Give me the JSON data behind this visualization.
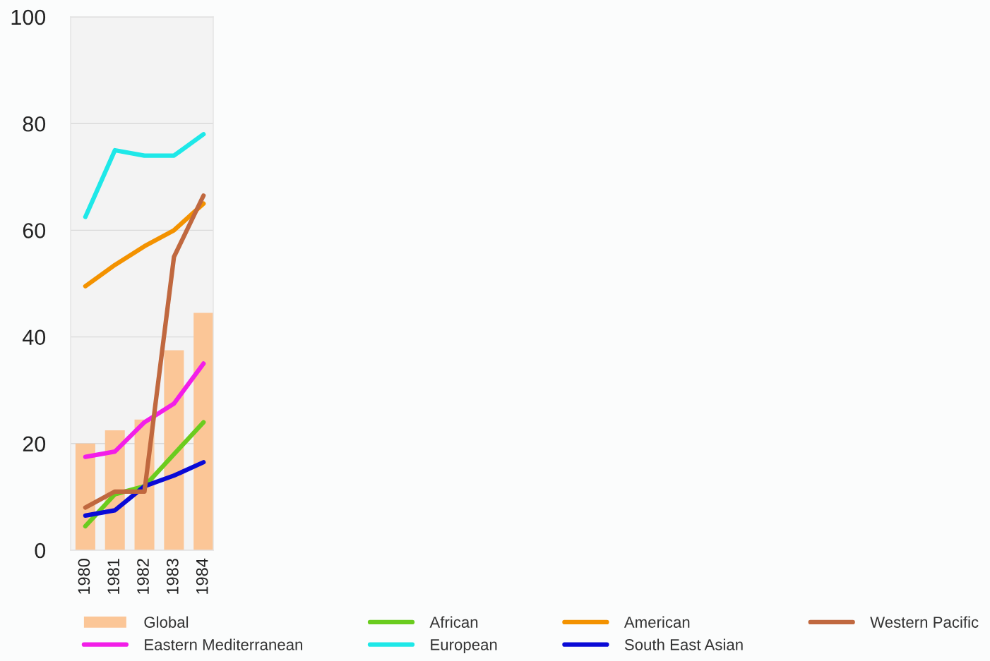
{
  "chart_data": {
    "type": "line",
    "categories": [
      "1980",
      "1981",
      "1982",
      "1983",
      "1984"
    ],
    "series": [
      {
        "name": "Global",
        "type": "bar",
        "color": "#fbc697",
        "values": [
          20,
          22.5,
          24.5,
          37.5,
          44.5
        ]
      },
      {
        "name": "Eastern Mediterranean",
        "color": "#f21ee8",
        "values": [
          17.5,
          18.5,
          24,
          27.5,
          35
        ]
      },
      {
        "name": "African",
        "color": "#6acc1e",
        "values": [
          4.5,
          10.5,
          12,
          18,
          24
        ]
      },
      {
        "name": "European",
        "color": "#1ee8e8",
        "values": [
          62.5,
          75,
          74,
          74,
          78
        ]
      },
      {
        "name": "American",
        "color": "#f39200",
        "values": [
          49.5,
          53.5,
          57,
          60,
          65
        ]
      },
      {
        "name": "South East Asian",
        "color": "#0a0ad6",
        "values": [
          6.5,
          7.5,
          12,
          14,
          16.5
        ]
      },
      {
        "name": "Western Pacific",
        "color": "#c0683f",
        "values": [
          8,
          11,
          11,
          55,
          66.5
        ]
      }
    ],
    "ylim": [
      0,
      100
    ],
    "yticks": [
      0,
      20,
      40,
      60,
      80,
      100
    ],
    "grid": "y",
    "legend": "bottom",
    "marker": "none",
    "line_style": "solid"
  }
}
